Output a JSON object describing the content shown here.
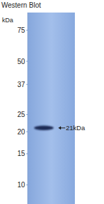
{
  "chart_data": {
    "type": "western_blot",
    "title": "Western Blot",
    "ylabel": "kDa",
    "categories": [
      null
    ],
    "values": [
      21
    ],
    "value_labels": [
      "21kDa"
    ],
    "data_labels": true,
    "ylim": [
      7.8,
      94.4
    ],
    "log": "y",
    "yticks": [
      75,
      50,
      37,
      25,
      20,
      15,
      10
    ],
    "tick_labels": "y"
  }
}
